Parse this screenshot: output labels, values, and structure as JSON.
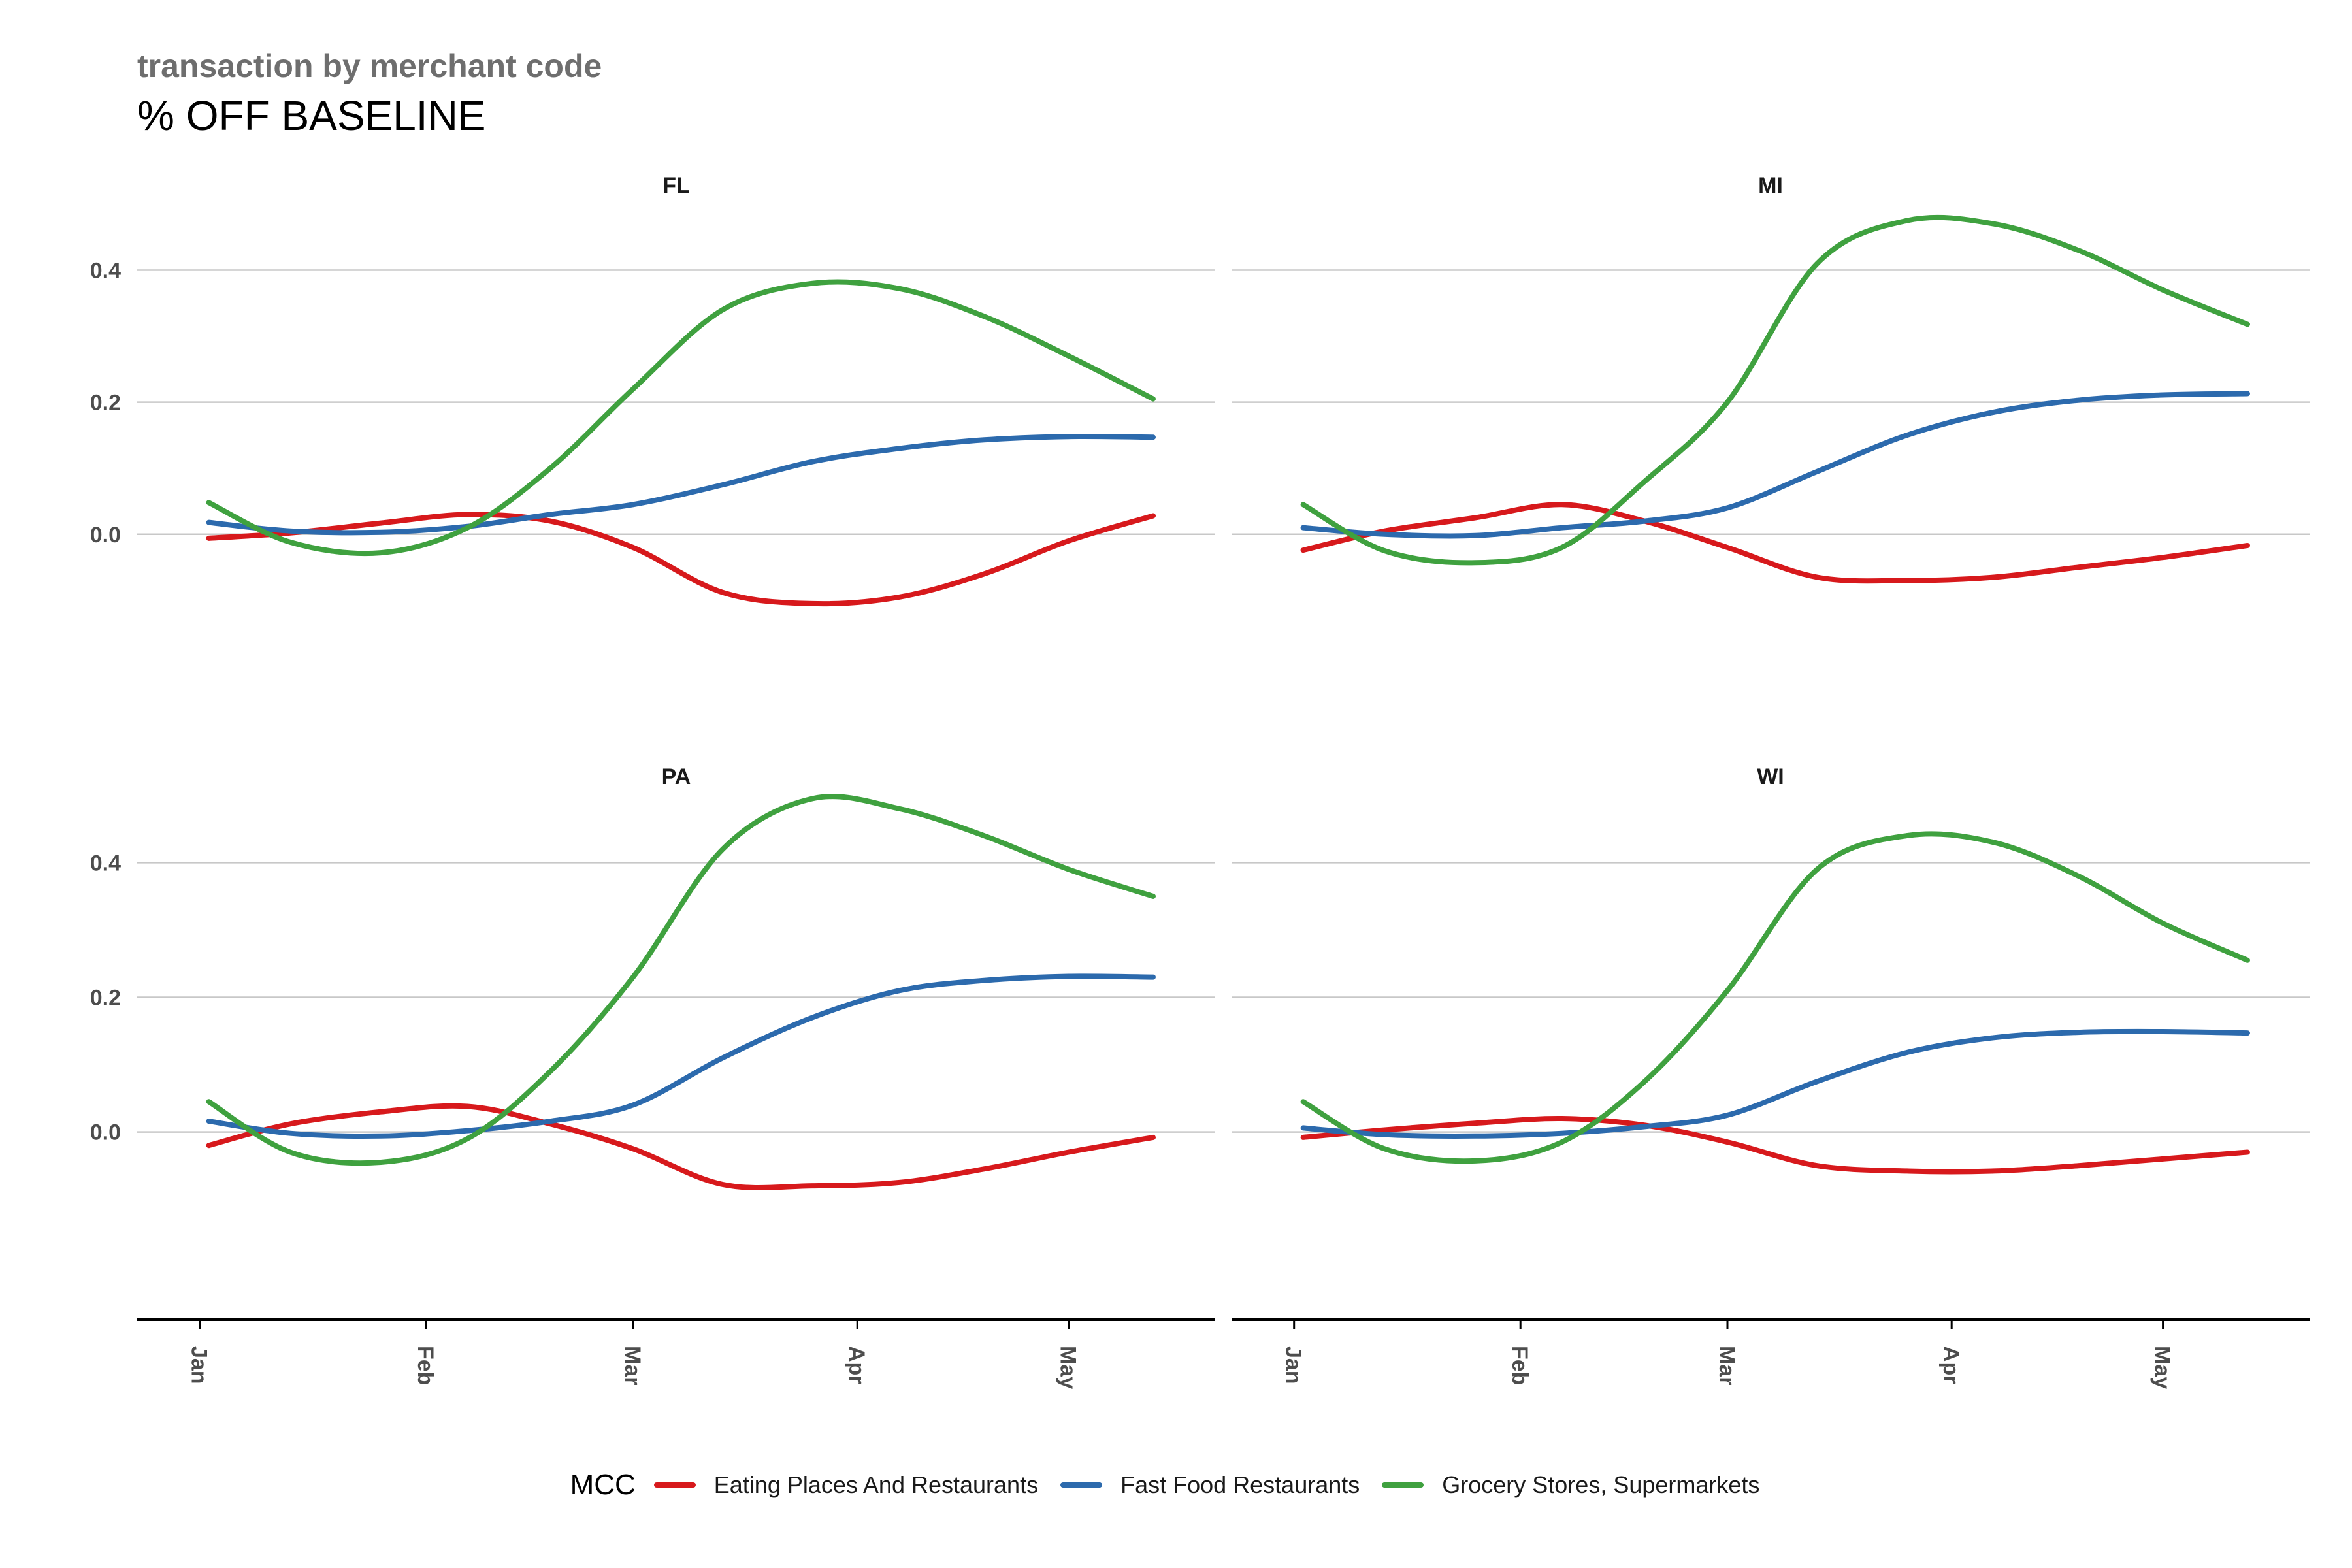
{
  "header": {
    "subtitle": "transaction by merchant code",
    "title": "% OFF BASELINE"
  },
  "legend": {
    "title": "MCC"
  },
  "colors": {
    "Eating Places And Restaurants": "#d7191c",
    "Fast Food Restaurants": "#2c6aad",
    "Grocery Stores, Supermarkets": "#3fa13f"
  },
  "chart_data": {
    "type": "line",
    "facets": [
      "FL",
      "MI",
      "PA",
      "WI"
    ],
    "x_ticks": [
      "Jan",
      "Feb",
      "Mar",
      "Apr",
      "May"
    ],
    "xlim": [
      "Jan",
      "May"
    ],
    "ylim": [
      -0.15,
      0.5
    ],
    "y_ticks": [
      0.0,
      0.2,
      0.4
    ],
    "x": [
      0.05,
      0.5,
      1.0,
      1.5,
      2.0,
      2.5,
      3.0,
      3.5,
      4.0,
      4.5,
      5.0,
      5.5
    ],
    "panels": [
      {
        "name": "FL",
        "series": [
          {
            "name": "Eating Places And Restaurants",
            "values": [
              -0.006,
              0.002,
              0.017,
              0.03,
              0.02,
              -0.02,
              -0.088,
              -0.105,
              -0.095,
              -0.06,
              -0.01,
              0.028
            ]
          },
          {
            "name": "Fast Food Restaurants",
            "values": [
              0.018,
              0.005,
              0.003,
              0.012,
              0.03,
              0.045,
              0.075,
              0.11,
              0.13,
              0.143,
              0.148,
              0.147
            ]
          },
          {
            "name": "Grocery Stores, Supermarkets",
            "values": [
              0.048,
              -0.012,
              -0.028,
              0.01,
              0.1,
              0.22,
              0.34,
              0.38,
              0.372,
              0.33,
              0.27,
              0.205
            ]
          }
        ]
      },
      {
        "name": "MI",
        "series": [
          {
            "name": "Eating Places And Restaurants",
            "values": [
              -0.024,
              0.005,
              0.025,
              0.045,
              0.02,
              -0.02,
              -0.065,
              -0.07,
              -0.065,
              -0.05,
              -0.035,
              -0.017
            ]
          },
          {
            "name": "Fast Food Restaurants",
            "values": [
              0.01,
              0.0,
              -0.002,
              0.01,
              0.02,
              0.04,
              0.095,
              0.15,
              0.185,
              0.203,
              0.211,
              0.213
            ]
          },
          {
            "name": "Grocery Stores, Supermarkets",
            "values": [
              0.045,
              -0.025,
              -0.043,
              -0.02,
              0.08,
              0.2,
              0.41,
              0.475,
              0.47,
              0.43,
              0.37,
              0.318
            ]
          }
        ]
      },
      {
        "name": "PA",
        "series": [
          {
            "name": "Eating Places And Restaurants",
            "values": [
              -0.02,
              0.012,
              0.03,
              0.038,
              0.012,
              -0.025,
              -0.078,
              -0.08,
              -0.075,
              -0.055,
              -0.03,
              -0.008
            ]
          },
          {
            "name": "Fast Food Restaurants",
            "values": [
              0.016,
              -0.002,
              -0.006,
              0.002,
              0.016,
              0.04,
              0.11,
              0.17,
              0.21,
              0.225,
              0.231,
              0.23
            ]
          },
          {
            "name": "Grocery Stores, Supermarkets",
            "values": [
              0.045,
              -0.03,
              -0.045,
              -0.01,
              0.09,
              0.23,
              0.42,
              0.495,
              0.48,
              0.44,
              0.39,
              0.35
            ]
          }
        ]
      },
      {
        "name": "WI",
        "series": [
          {
            "name": "Eating Places And Restaurants",
            "values": [
              -0.008,
              0.003,
              0.013,
              0.02,
              0.01,
              -0.015,
              -0.05,
              -0.058,
              -0.058,
              -0.05,
              -0.04,
              -0.03
            ]
          },
          {
            "name": "Fast Food Restaurants",
            "values": [
              0.006,
              -0.004,
              -0.006,
              -0.002,
              0.008,
              0.025,
              0.075,
              0.118,
              0.14,
              0.148,
              0.149,
              0.147
            ]
          },
          {
            "name": "Grocery Stores, Supermarkets",
            "values": [
              0.045,
              -0.025,
              -0.043,
              -0.015,
              0.075,
              0.21,
              0.39,
              0.44,
              0.43,
              0.38,
              0.31,
              0.255
            ]
          }
        ]
      }
    ],
    "legend_position": "bottom",
    "grid": true
  }
}
